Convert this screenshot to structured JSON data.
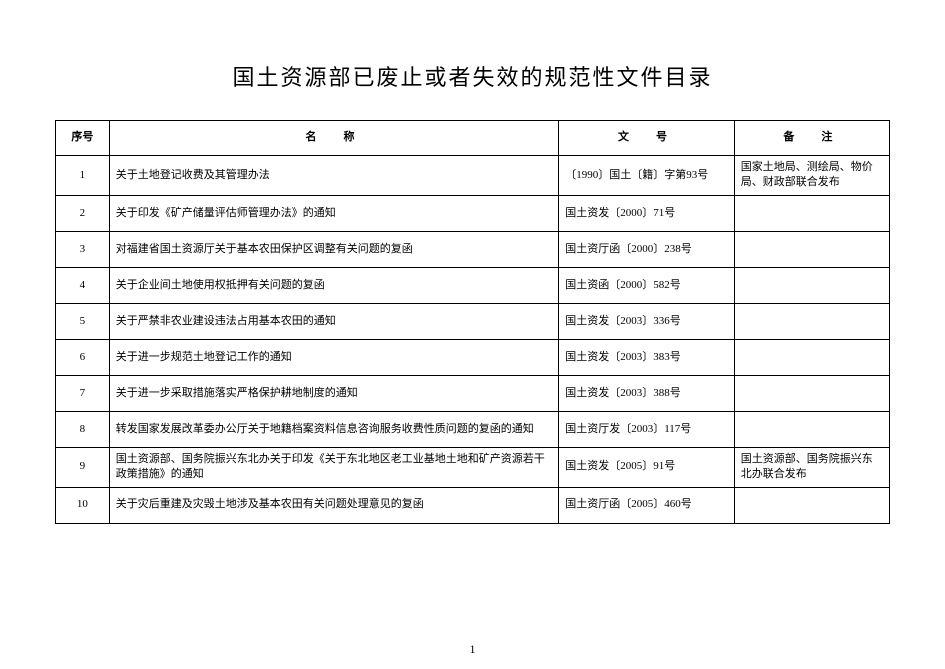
{
  "title": "国土资源部已废止或者失效的规范性文件目录",
  "columns": {
    "seq": "序号",
    "name": "名　称",
    "docno": "文　号",
    "note": "备　注"
  },
  "rows": [
    {
      "seq": "1",
      "name": "关于土地登记收费及其管理办法",
      "docno": "〔1990〕国土〔籍〕字第93号",
      "note": "国家土地局、测绘局、物价局、财政部联合发布"
    },
    {
      "seq": "2",
      "name": "关于印发《矿产储量评估师管理办法》的通知",
      "docno": "国土资发〔2000〕71号",
      "note": ""
    },
    {
      "seq": "3",
      "name": "对福建省国土资源厅关于基本农田保护区调整有关问题的复函",
      "docno": "国土资厅函〔2000〕238号",
      "note": ""
    },
    {
      "seq": "4",
      "name": "关于企业间土地使用权抵押有关问题的复函",
      "docno": "国土资函〔2000〕582号",
      "note": ""
    },
    {
      "seq": "5",
      "name": "关于严禁非农业建设违法占用基本农田的通知",
      "docno": "国土资发〔2003〕336号",
      "note": ""
    },
    {
      "seq": "6",
      "name": "关于进一步规范土地登记工作的通知",
      "docno": "国土资发〔2003〕383号",
      "note": ""
    },
    {
      "seq": "7",
      "name": "关于进一步采取措施落实严格保护耕地制度的通知",
      "docno": "国土资发〔2003〕388号",
      "note": ""
    },
    {
      "seq": "8",
      "name": "转发国家发展改革委办公厅关于地籍档案资料信息咨询服务收费性质问题的复函的通知",
      "docno": "国土资厅发〔2003〕117号",
      "note": ""
    },
    {
      "seq": "9",
      "name": "国土资源部、国务院振兴东北办关于印发《关于东北地区老工业基地土地和矿产资源若干政策措施》的通知",
      "docno": "国土资发〔2005〕91号",
      "note": "国土资源部、国务院振兴东北办联合发布"
    },
    {
      "seq": "10",
      "name": "关于灾后重建及灾毁土地涉及基本农田有关问题处理意见的复函",
      "docno": "国土资厅函〔2005〕460号",
      "note": ""
    }
  ],
  "pageNumber": "1"
}
